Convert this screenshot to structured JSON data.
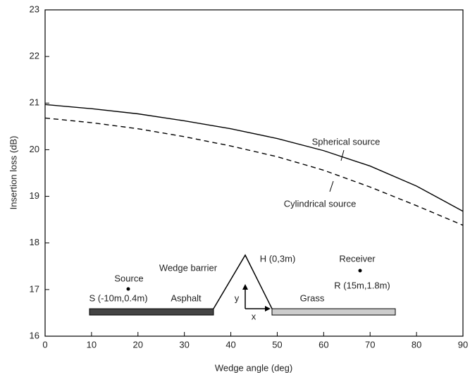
{
  "chart_data": {
    "type": "line",
    "x_label": "Wedge angle (deg)",
    "y_label": "Insertion loss (dB)",
    "x": [
      0,
      10,
      20,
      30,
      40,
      50,
      60,
      70,
      80,
      90
    ],
    "series": [
      {
        "name": "Spherical source",
        "color": "#000000",
        "dash": "solid",
        "values": [
          20.97,
          20.88,
          20.77,
          20.62,
          20.45,
          20.24,
          19.98,
          19.65,
          19.22,
          18.68
        ]
      },
      {
        "name": "Cylindrical source",
        "color": "#000000",
        "dash": "dashed",
        "values": [
          20.68,
          20.58,
          20.45,
          20.28,
          20.08,
          19.85,
          19.56,
          19.2,
          18.8,
          18.38
        ]
      }
    ],
    "xlim": [
      0,
      90
    ],
    "xticks": [
      0,
      10,
      20,
      30,
      40,
      50,
      60,
      70,
      80,
      90
    ],
    "ylim": [
      16,
      23
    ],
    "yticks": [
      16,
      17,
      18,
      19,
      20,
      21,
      22,
      23
    ],
    "grid": false,
    "annotations": [
      "Source",
      "S (-10m,0.4m)",
      "Asphalt",
      "Wedge barrier",
      "H (0,3m)",
      "Receiver",
      "R (15m,1.8m)",
      "Grass",
      "y",
      "x"
    ]
  }
}
